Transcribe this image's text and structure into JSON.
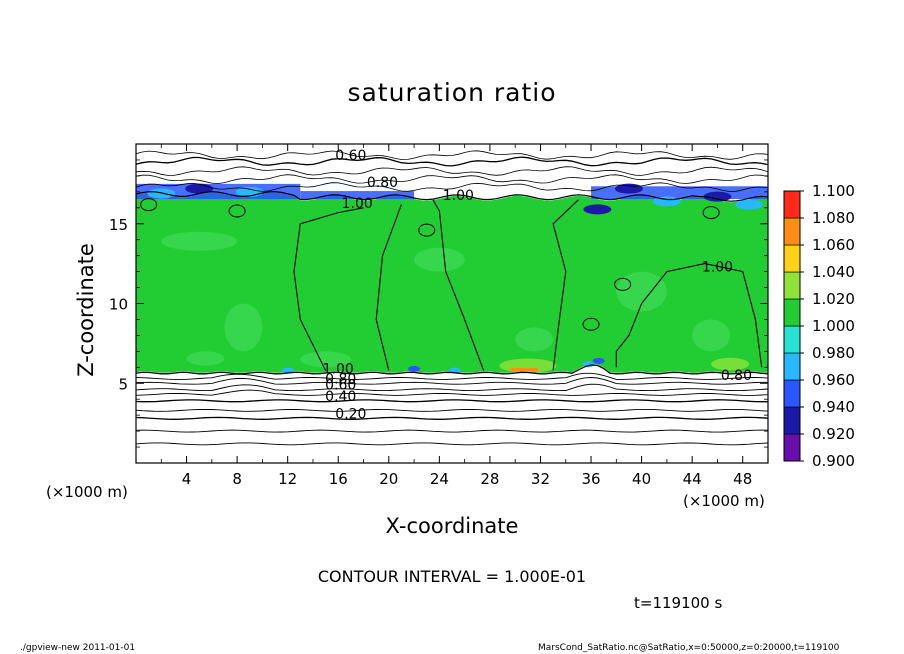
{
  "chart_data": {
    "type": "heatmap",
    "title": "saturation ratio",
    "xlabel": "X-coordinate",
    "ylabel": "Z-coordinate",
    "x_unit_label_left": "(×1000 m)",
    "x_unit_label_right": "(×1000 m)",
    "xlim": [
      0,
      50
    ],
    "ylim": [
      0,
      20
    ],
    "x_ticks": [
      4,
      8,
      12,
      16,
      20,
      24,
      28,
      32,
      36,
      40,
      44,
      48
    ],
    "y_ticks": [
      5,
      10,
      15
    ],
    "colorbar": {
      "levels": [
        0.9,
        0.92,
        0.94,
        0.96,
        0.98,
        1.0,
        1.02,
        1.04,
        1.06,
        1.08,
        1.1
      ],
      "labels": [
        "0.900",
        "0.920",
        "0.940",
        "0.960",
        "0.980",
        "1.000",
        "1.020",
        "1.040",
        "1.060",
        "1.080",
        "1.100"
      ],
      "colors": [
        "#6a0dad",
        "#1a1aa6",
        "#2a55ff",
        "#27b8ff",
        "#25e3d0",
        "#22cc33",
        "#8ee23a",
        "#ffd21a",
        "#ff8c14",
        "#ff2a1a",
        "#ff9aa6"
      ]
    },
    "saturated_layer": {
      "z_bottom": 5.7,
      "z_top": 16.6,
      "value_range": [
        0.98,
        1.02
      ]
    },
    "contour_labels": [
      {
        "text": "0.60",
        "x": 17,
        "z": 19.0
      },
      {
        "text": "0.80",
        "x": 19.5,
        "z": 17.3
      },
      {
        "text": "1.00",
        "x": 17.5,
        "z": 16.0
      },
      {
        "text": "1.00",
        "x": 25.5,
        "z": 16.5
      },
      {
        "text": "1.00",
        "x": 46,
        "z": 12.0
      },
      {
        "text": "1.00",
        "x": 16,
        "z": 5.6
      },
      {
        "text": "0.80",
        "x": 16.2,
        "z": 5.0
      },
      {
        "text": "0.60",
        "x": 16.2,
        "z": 4.6
      },
      {
        "text": "0.40",
        "x": 16.2,
        "z": 3.9
      },
      {
        "text": "0.20",
        "x": 17,
        "z": 2.8
      },
      {
        "text": "0.80",
        "x": 47.5,
        "z": 5.2
      }
    ],
    "contour_interval": "CONTOUR INTERVAL = 1.000E-01",
    "time": "t=119100 s"
  },
  "footer": {
    "left": "./gpview-new  2011-01-01",
    "right": "MarsCond_SatRatio.nc@SatRatio,x=0:50000,z=0:20000,t=119100"
  }
}
